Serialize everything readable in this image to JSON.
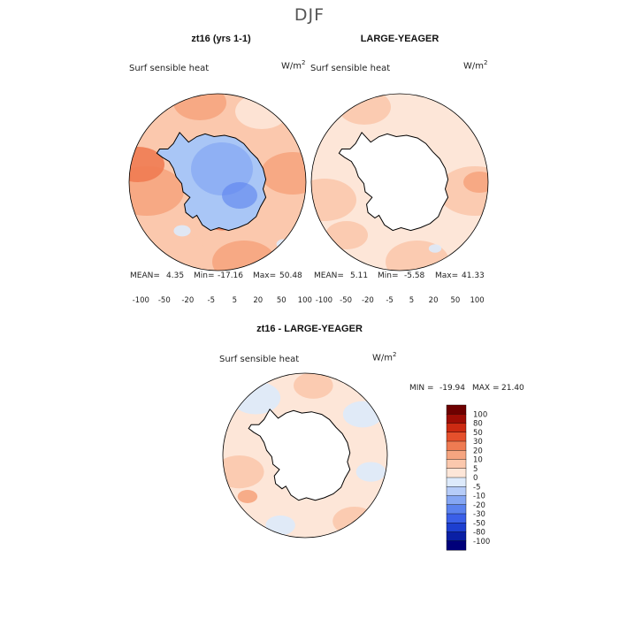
{
  "main_title": "DJF",
  "variable_label": "Surf sensible heat",
  "units": "W/m",
  "units_exponent": "2",
  "colorbar": {
    "levels": [
      "-100",
      "-80",
      "-50",
      "-30",
      "-20",
      "-10",
      "-5",
      "0",
      "5",
      "10",
      "20",
      "30",
      "50",
      "80",
      "100"
    ],
    "short_ticks": [
      "-100",
      "-50",
      "-20",
      "-5",
      "5",
      "20",
      "50",
      "100"
    ],
    "colors": [
      "#00007a",
      "#0a1fa5",
      "#1d3fd0",
      "#3a5fe8",
      "#5b82ee",
      "#85a6f3",
      "#b6ccf8",
      "#ddeafb",
      "#fde6d8",
      "#fbc8ad",
      "#f6a580",
      "#ef7b52",
      "#e5502c",
      "#cc2a12",
      "#9e0d05",
      "#6e0000"
    ]
  },
  "chart_data": [
    {
      "type": "heatmap",
      "projection": "south-polar-stereographic",
      "title": "zt16 (yrs 1-1)",
      "variable": "Surf sensible heat",
      "units": "W/m2",
      "stats": {
        "mean_label": "MEAN=",
        "mean": "4.35",
        "min_label": "Min=",
        "min": "-17.16",
        "max_label": "Max=",
        "max": "50.48"
      }
    },
    {
      "type": "heatmap",
      "projection": "south-polar-stereographic",
      "title": "LARGE-YEAGER",
      "variable": "Surf sensible heat",
      "units": "W/m2",
      "stats": {
        "mean_label": "MEAN=",
        "mean": "5.11",
        "min_label": "Min=",
        "min": "-5.58",
        "max_label": "Max=",
        "max": "41.33"
      }
    },
    {
      "type": "heatmap",
      "projection": "south-polar-stereographic",
      "title": "zt16 - LARGE-YEAGER",
      "variable": "Surf sensible heat",
      "units": "W/m2",
      "stats": {
        "min_label": "MIN =",
        "min": "-19.94",
        "max_label": "MAX =",
        "max": "21.40"
      }
    }
  ]
}
